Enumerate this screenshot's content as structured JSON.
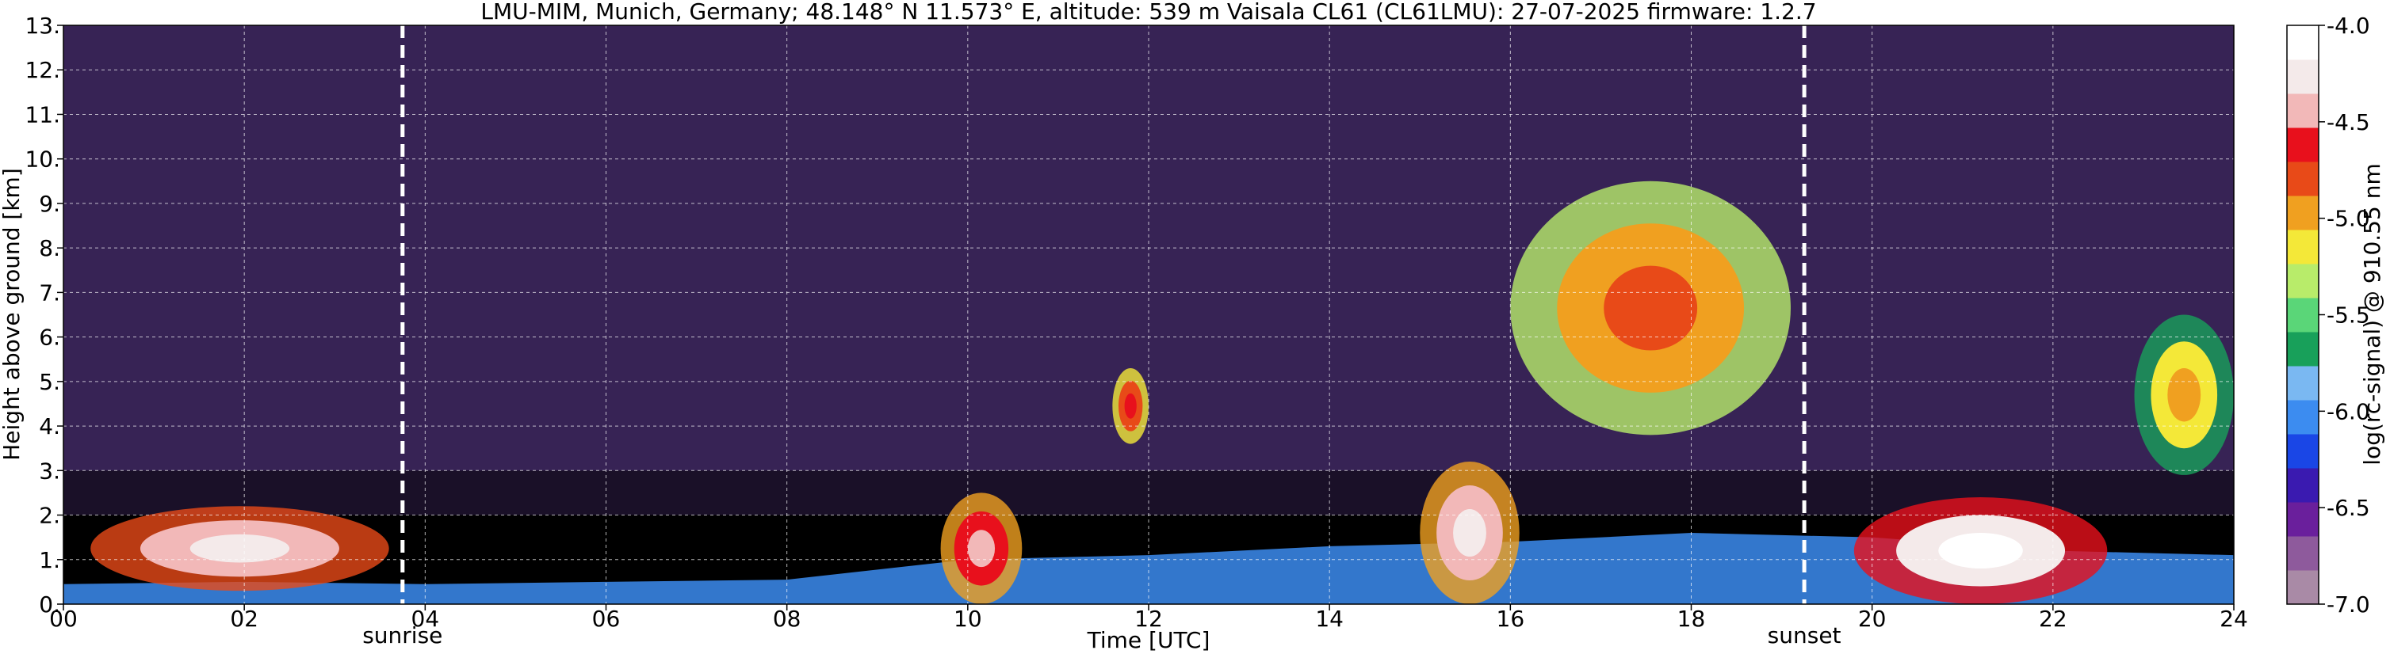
{
  "chart_data": {
    "type": "heatmap",
    "title": "LMU-MIM, Munich, Germany; 48.148° N 11.573° E, altitude: 539 m    Vaisala CL61 (CL61LMU): 27-07-2025    firmware: 1.2.7",
    "xlabel": "Time [UTC]",
    "ylabel": "Height above ground [km]",
    "colorbar_label": "log(rc-signal) @ 910.55 nm",
    "xlim": [
      0,
      24
    ],
    "ylim": [
      0,
      13
    ],
    "clim": [
      -7.0,
      -4.0
    ],
    "grid": true,
    "x_ticks": [
      0,
      2,
      4,
      6,
      8,
      10,
      12,
      14,
      16,
      18,
      20,
      22,
      24
    ],
    "x_tick_labels": [
      "00",
      "02",
      "04",
      "06",
      "08",
      "10",
      "12",
      "14",
      "16",
      "18",
      "20",
      "22",
      "24"
    ],
    "y_ticks": [
      0,
      1,
      2,
      3,
      4,
      5,
      6,
      7,
      8,
      9,
      10,
      11,
      12,
      13
    ],
    "y_tick_labels": [
      "0.",
      "1.",
      "2.",
      "3.",
      "4.",
      "5.",
      "6.",
      "7.",
      "8.",
      "9.",
      "10.",
      "11.",
      "12.",
      "13."
    ],
    "colorbar_ticks": [
      -7.0,
      -6.5,
      -6.0,
      -5.5,
      -5.0,
      -4.5,
      -4.0
    ],
    "colorbar_tick_labels": [
      "-7.0",
      "-6.5",
      "-6.0",
      "-5.5",
      "-5.0",
      "-4.5",
      "-4.0"
    ],
    "colorscale": [
      "#a98aa6",
      "#8e5a9c",
      "#6a1f9c",
      "#3a1ab0",
      "#1a46e6",
      "#3c8cf0",
      "#7ab8f2",
      "#18a05a",
      "#5ad678",
      "#b8ec6a",
      "#f4e838",
      "#f0a020",
      "#e84a18",
      "#e8101c",
      "#f2b8b8",
      "#f4eaea",
      "#ffffff"
    ],
    "background_color": "#000000",
    "noise_color": "#4a2f72",
    "markers": [
      {
        "label": "sunrise",
        "x": 3.75
      },
      {
        "label": "sunset",
        "x": 19.25
      }
    ],
    "features": [
      {
        "desc": "boundary layer aerosol",
        "x": [
          0,
          24
        ],
        "top": [
          0.45,
          0.5,
          0.45,
          0.5,
          0.55,
          1.0,
          1.1,
          1.3,
          1.4,
          1.6,
          1.5,
          1.2,
          1.1
        ],
        "value": -6.1
      },
      {
        "desc": "morning low clouds",
        "x": [
          0.3,
          3.6
        ],
        "y": [
          0.3,
          2.2
        ],
        "value": -4.2
      },
      {
        "desc": "cumulus around noon",
        "x": [
          9.7,
          10.6
        ],
        "y": [
          0.0,
          2.5
        ],
        "value": -4.4
      },
      {
        "desc": "mid-level cloud",
        "x": [
          11.6,
          12.0
        ],
        "y": [
          3.6,
          5.3
        ],
        "value": -4.6
      },
      {
        "desc": "afternoon convective cloud",
        "x": [
          15.0,
          16.1
        ],
        "y": [
          0.0,
          3.2
        ],
        "value": -4.3
      },
      {
        "desc": "upper-level cloud",
        "x": [
          16.0,
          19.1
        ],
        "y": [
          3.8,
          9.5
        ],
        "value": -4.8
      },
      {
        "desc": "evening cloud base",
        "x": [
          19.8,
          22.6
        ],
        "y": [
          0.0,
          2.4
        ],
        "value": -4.1
      },
      {
        "desc": "evening mid-level cloud",
        "x": [
          22.9,
          24.0
        ],
        "y": [
          2.9,
          6.5
        ],
        "value": -5.0
      }
    ]
  }
}
